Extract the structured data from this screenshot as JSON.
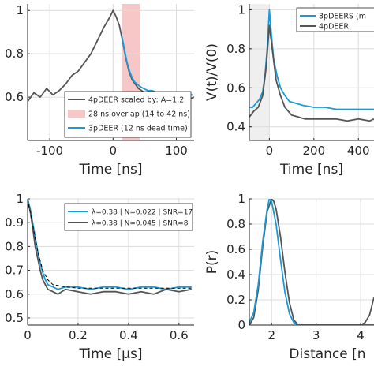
{
  "chart_data": [
    {
      "type": "line",
      "xlabel": "Time [ns]",
      "ylabel": "",
      "xlim": [
        -135,
        128
      ],
      "ylim": [
        0.4,
        1.03
      ],
      "xticks": [
        -100,
        0,
        100
      ],
      "yticks": [
        0.4,
        0.6,
        0.8,
        1
      ],
      "xtick_labels": [
        "-100",
        "0",
        "100"
      ],
      "ytick_labels": [
        "",
        "0.6",
        "0.8",
        "1"
      ],
      "grid": true,
      "legend_position": "bottom-right",
      "shaded_region": {
        "x0": 14,
        "x1": 42,
        "color": "#f7c7c7"
      },
      "legend": [
        {
          "label": "4pDEER scaled by: A=1.2",
          "color": "#555555",
          "kind": "line"
        },
        {
          "label": "28 ns overlap (14 to 42 ns)",
          "color": "#f7c7c7",
          "kind": "patch"
        },
        {
          "label": "3pDEER (12 ns dead time)",
          "color": "#1a9bd7",
          "kind": "line"
        }
      ],
      "series": [
        {
          "name": "4pDEER scaled by: A=1.2",
          "color": "#555555",
          "x": [
            -135,
            -125,
            -115,
            -105,
            -95,
            -85,
            -75,
            -65,
            -55,
            -45,
            -35,
            -25,
            -15,
            -5,
            0,
            5,
            10,
            15,
            20,
            25,
            30,
            35,
            40,
            45,
            50,
            55,
            60,
            65,
            70,
            75,
            80,
            85,
            90,
            95,
            100,
            110,
            120,
            128
          ],
          "y": [
            0.58,
            0.62,
            0.6,
            0.64,
            0.61,
            0.63,
            0.66,
            0.7,
            0.72,
            0.76,
            0.8,
            0.86,
            0.92,
            0.97,
            1.0,
            0.97,
            0.93,
            0.86,
            0.78,
            0.72,
            0.68,
            0.66,
            0.64,
            0.63,
            0.62,
            0.62,
            0.61,
            0.6,
            0.61,
            0.6,
            0.59,
            0.6,
            0.6,
            0.59,
            0.58,
            0.6,
            0.59,
            0.6
          ]
        },
        {
          "name": "3pDEER (12 ns dead time)",
          "color": "#1a9bd7",
          "x": [
            14,
            18,
            22,
            26,
            30,
            34,
            38,
            42,
            48,
            55,
            62,
            70,
            78,
            86,
            94,
            102,
            110,
            118,
            126
          ],
          "y": [
            0.88,
            0.82,
            0.76,
            0.72,
            0.69,
            0.67,
            0.66,
            0.65,
            0.64,
            0.63,
            0.63,
            0.62,
            0.62,
            0.62,
            0.61,
            0.61,
            0.61,
            0.61,
            0.61
          ]
        }
      ]
    },
    {
      "type": "line",
      "xlabel": "Time [ns]",
      "ylabel": "V(t)/V(0)",
      "xlim": [
        -90,
        470
      ],
      "ylim": [
        0.33,
        1.03
      ],
      "xticks": [
        0,
        200,
        400
      ],
      "yticks": [
        0.4,
        0.6,
        0.8,
        1
      ],
      "xtick_labels": [
        "0",
        "200",
        "400"
      ],
      "ytick_labels": [
        "0.4",
        "0.6",
        "0.8",
        "1"
      ],
      "grid": true,
      "legend_position": "top-right",
      "shaded_region": {
        "x0": -90,
        "x1": 0,
        "color": "#efefef"
      },
      "legend": [
        {
          "label": "3pDEERS (m",
          "color": "#1a9bd7",
          "kind": "line"
        },
        {
          "label": "4pDEER",
          "color": "#555555",
          "kind": "line"
        }
      ],
      "series": [
        {
          "name": "3pDEERS (m",
          "color": "#1a9bd7",
          "x": [
            -90,
            -75,
            -60,
            -45,
            -30,
            -20,
            -10,
            0,
            10,
            20,
            35,
            50,
            70,
            90,
            120,
            150,
            200,
            250,
            300,
            350,
            400,
            450,
            470
          ],
          "y": [
            0.5,
            0.5,
            0.52,
            0.54,
            0.58,
            0.66,
            0.8,
            1.0,
            0.86,
            0.74,
            0.66,
            0.6,
            0.56,
            0.53,
            0.52,
            0.51,
            0.5,
            0.5,
            0.49,
            0.49,
            0.49,
            0.49,
            0.49
          ]
        },
        {
          "name": "4pDEER",
          "color": "#555555",
          "x": [
            -90,
            -70,
            -50,
            -30,
            -15,
            0,
            15,
            30,
            50,
            70,
            100,
            130,
            160,
            200,
            250,
            300,
            350,
            400,
            450,
            470
          ],
          "y": [
            0.45,
            0.48,
            0.5,
            0.56,
            0.7,
            0.92,
            0.78,
            0.64,
            0.56,
            0.5,
            0.46,
            0.45,
            0.44,
            0.44,
            0.44,
            0.44,
            0.43,
            0.44,
            0.43,
            0.44
          ]
        }
      ]
    },
    {
      "type": "line",
      "xlabel": "Time [μs]",
      "ylabel": "",
      "xlim": [
        0,
        0.66
      ],
      "ylim": [
        0.47,
        1.0
      ],
      "xticks": [
        0,
        0.2,
        0.4,
        0.6
      ],
      "yticks": [
        0.5,
        0.6,
        0.7,
        0.8,
        0.9,
        1
      ],
      "xtick_labels": [
        "0",
        "0.2",
        "0.4",
        "0.6"
      ],
      "ytick_labels": [
        "0.5",
        "0.6",
        "0.7",
        "0.8",
        "0.9",
        "1"
      ],
      "grid": true,
      "legend_position": "top-right",
      "legend": [
        {
          "label": "λ=0.38 | N=0.022 | SNR=17",
          "color": "#1a9bd7",
          "kind": "line"
        },
        {
          "label": "λ=0.38 | N=0.045 | SNR=8",
          "color": "#555555",
          "kind": "line"
        }
      ],
      "series": [
        {
          "name": "λ=0.38 | N=0.022 | SNR=17",
          "color": "#1a9bd7",
          "x": [
            0,
            0.01,
            0.02,
            0.03,
            0.04,
            0.05,
            0.06,
            0.07,
            0.08,
            0.1,
            0.12,
            0.15,
            0.2,
            0.25,
            0.3,
            0.35,
            0.4,
            0.45,
            0.5,
            0.55,
            0.6,
            0.65
          ],
          "y": [
            1.0,
            0.96,
            0.9,
            0.84,
            0.78,
            0.73,
            0.69,
            0.66,
            0.64,
            0.63,
            0.62,
            0.63,
            0.63,
            0.62,
            0.63,
            0.63,
            0.62,
            0.63,
            0.63,
            0.62,
            0.63,
            0.63
          ]
        },
        {
          "name": "λ=0.38 | N=0.045 | SNR=8",
          "color": "#555555",
          "x": [
            0,
            0.01,
            0.02,
            0.03,
            0.04,
            0.05,
            0.06,
            0.07,
            0.08,
            0.1,
            0.12,
            0.15,
            0.2,
            0.25,
            0.3,
            0.35,
            0.4,
            0.45,
            0.5,
            0.55,
            0.6,
            0.65
          ],
          "y": [
            0.99,
            0.95,
            0.88,
            0.8,
            0.75,
            0.7,
            0.66,
            0.64,
            0.62,
            0.61,
            0.6,
            0.62,
            0.61,
            0.6,
            0.61,
            0.61,
            0.6,
            0.61,
            0.6,
            0.62,
            0.61,
            0.62
          ]
        },
        {
          "name": "",
          "color": "#000000",
          "dashed": true,
          "x": [
            0,
            0.02,
            0.04,
            0.06,
            0.08,
            0.1,
            0.15,
            0.2,
            0.3,
            0.4,
            0.5,
            0.6,
            0.65
          ],
          "y": [
            1.0,
            0.89,
            0.78,
            0.7,
            0.66,
            0.64,
            0.63,
            0.625,
            0.625,
            0.625,
            0.625,
            0.625,
            0.625
          ]
        }
      ]
    },
    {
      "type": "line",
      "xlabel": "Distance [n",
      "ylabel": "P(r)",
      "xlim": [
        1.5,
        4.3
      ],
      "ylim": [
        0,
        1
      ],
      "xticks": [
        2,
        3,
        4
      ],
      "yticks": [
        0,
        0.2,
        0.4,
        0.6,
        0.8,
        1
      ],
      "xtick_labels": [
        "2",
        "3",
        "4"
      ],
      "ytick_labels": [
        "0",
        "0.2",
        "0.4",
        "0.6",
        "0.8",
        "1"
      ],
      "grid": true,
      "series": [
        {
          "name": "",
          "color": "#555555",
          "x": [
            1.5,
            1.6,
            1.7,
            1.8,
            1.9,
            2.0,
            2.05,
            2.1,
            2.2,
            2.3,
            2.4,
            2.5,
            2.6,
            2.8,
            3.0,
            3.2,
            3.4,
            3.55,
            3.6,
            3.7,
            3.8,
            3.9,
            4.0,
            4.1,
            4.2,
            4.3
          ],
          "y": [
            0.0,
            0.06,
            0.28,
            0.62,
            0.9,
            1.0,
            0.98,
            0.92,
            0.7,
            0.42,
            0.18,
            0.04,
            0.0,
            0.0,
            0.0,
            0.0,
            0.0,
            0.0,
            0.0,
            0.0,
            0.0,
            0.0,
            0.0,
            0.02,
            0.08,
            0.22
          ]
        },
        {
          "name": "",
          "color": "#1a9bd7",
          "x": [
            1.5,
            1.6,
            1.7,
            1.8,
            1.9,
            1.95,
            2.0,
            2.1,
            2.2,
            2.3,
            2.4,
            2.5,
            2.6,
            2.7,
            2.8,
            3.0,
            3.2,
            3.4,
            3.6,
            3.8,
            4.0,
            4.2,
            4.3
          ],
          "y": [
            0.02,
            0.1,
            0.32,
            0.66,
            0.92,
            1.0,
            0.98,
            0.8,
            0.52,
            0.26,
            0.09,
            0.02,
            0.0,
            0.0,
            0.0,
            0.0,
            0.0,
            0.0,
            0.0,
            0.0,
            0.0,
            0.0,
            0.0
          ]
        }
      ]
    }
  ]
}
